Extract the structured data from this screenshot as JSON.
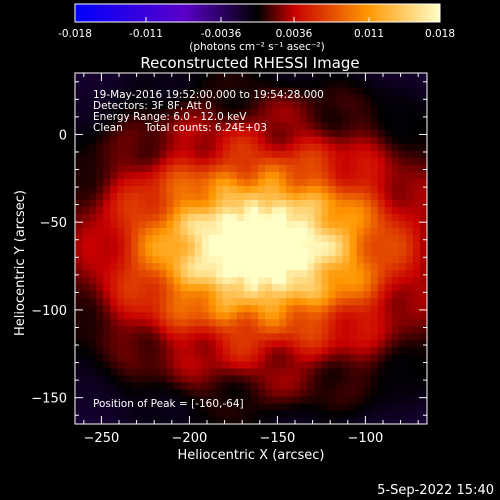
{
  "chart_data": {
    "type": "heatmap",
    "title": "Reconstructed RHESSI Image",
    "xlabel": "Heliocentric X (arcsec)",
    "ylabel": "Heliocentric Y (arcsec)",
    "xlim": [
      -265,
      -65
    ],
    "ylim": [
      -165,
      35
    ],
    "xticks": [
      -250,
      -200,
      -150,
      -100
    ],
    "yticks": [
      0,
      -50,
      -100,
      -150
    ],
    "colorbar": {
      "ticks": [
        "-0.018",
        "-0.011",
        "-0.0036",
        "0.0036",
        "0.011",
        "0.018"
      ],
      "values": [
        -0.018,
        -0.011,
        -0.0036,
        0.0036,
        0.011,
        0.018
      ],
      "range": [
        -0.018,
        0.018
      ],
      "units": "(photons cm⁻² s⁻¹ asec⁻²)",
      "colors": [
        "#0000ff",
        "#5a00c8",
        "#000000",
        "#c80000",
        "#ff9600",
        "#ffffc8"
      ]
    },
    "peak": {
      "x": -160,
      "y": -64,
      "value": 0.018
    },
    "annotations": {
      "time_range": "19-May-2016 19:52:00.000 to 19:54:28.000",
      "detectors": "Detectors: 3F 8F, Att 0",
      "energy_range": "Energy Range: 6.0 - 12.0 keV",
      "clean": "Clean",
      "total_counts": "Total counts: 6.24E+03",
      "peak_position": "Position of Peak = [-160,-64]"
    },
    "footer_date": "5-Sep-2022 15:40"
  }
}
